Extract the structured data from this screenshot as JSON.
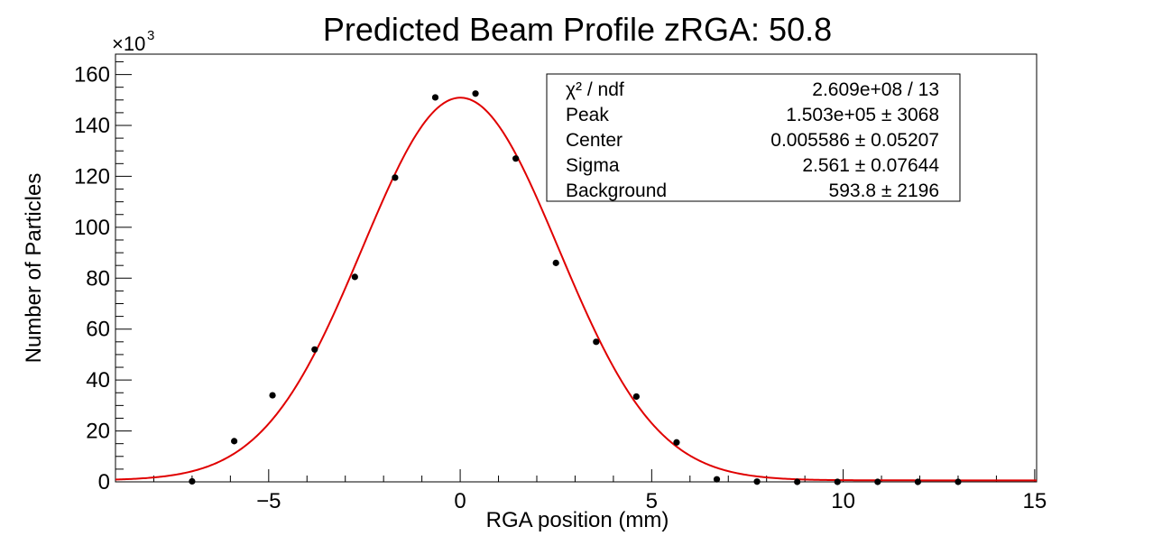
{
  "chart_data": {
    "type": "scatter",
    "title": "Predicted Beam Profile zRGA: 50.8",
    "xlabel": "RGA position (mm)",
    "ylabel": "Number of Particles",
    "y_multiplier": "×10",
    "y_multiplier_exp": "3",
    "xlim": [
      -9,
      15.05
    ],
    "ylim": [
      0,
      168
    ],
    "x_ticks": [
      -5,
      0,
      5,
      10,
      15
    ],
    "x_tick_labels": [
      "−5",
      "0",
      "5",
      "10",
      "15"
    ],
    "y_ticks": [
      0,
      20,
      40,
      60,
      80,
      100,
      120,
      140,
      160
    ],
    "y_tick_labels": [
      "0",
      "20",
      "40",
      "60",
      "80",
      "100",
      "120",
      "140",
      "160"
    ],
    "grid": false,
    "series": [
      {
        "type": "scatter",
        "color": "#000000",
        "x": [
          -7.0,
          -5.9,
          -4.9,
          -3.8,
          -2.75,
          -1.7,
          -0.65,
          0.4,
          1.45,
          2.5,
          3.55,
          4.6,
          5.65,
          6.7,
          7.75,
          8.8,
          9.85,
          10.9,
          11.95,
          13.0
        ],
        "y": [
          0.2,
          16,
          34,
          52,
          80.5,
          119.5,
          151,
          152.5,
          127,
          86,
          55,
          33.5,
          15.5,
          1,
          0.1,
          0,
          0,
          0,
          0,
          0
        ]
      },
      {
        "type": "line",
        "color": "#e00000",
        "fit": "gaussian",
        "peak": 150.3,
        "center": 0.005586,
        "sigma": 2.561,
        "background": 0.5938
      }
    ],
    "stats_box": {
      "position": "top-right",
      "rows": [
        {
          "label": "χ² / ndf",
          "value": "2.609e+08 / 13"
        },
        {
          "label": "Peak",
          "value": "1.503e+05 ±  3068"
        },
        {
          "label": "Center",
          "value": "0.005586 ± 0.05207"
        },
        {
          "label": "Sigma",
          "value": "2.561 ± 0.07644"
        },
        {
          "label": "Background",
          "value": "593.8 ±  2196"
        }
      ]
    }
  }
}
